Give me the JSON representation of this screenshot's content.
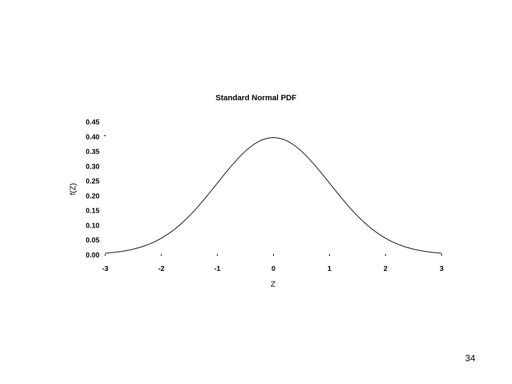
{
  "chart_data": {
    "type": "line",
    "title": "Standard Normal PDF",
    "xlabel": "Z",
    "ylabel": "f(Z)",
    "xlim": [
      -3,
      3
    ],
    "ylim": [
      0,
      0.45
    ],
    "x_ticks": [
      "-3",
      "-2",
      "-1",
      "0",
      "1",
      "2",
      "3"
    ],
    "y_ticks": [
      "0.00",
      "0.05",
      "0.10",
      "0.15",
      "0.20",
      "0.25",
      "0.30",
      "0.35",
      "0.40",
      "0.45"
    ],
    "grid": false,
    "series": [
      {
        "x": [
          -3.0,
          -2.75,
          -2.5,
          -2.25,
          -2.0,
          -1.75,
          -1.5,
          -1.25,
          -1.0,
          -0.75,
          -0.5,
          -0.25,
          0.0,
          0.25,
          0.5,
          0.75,
          1.0,
          1.25,
          1.5,
          1.75,
          2.0,
          2.25,
          2.5,
          2.75,
          3.0
        ],
        "y": [
          0.0044,
          0.0091,
          0.0175,
          0.0317,
          0.054,
          0.0863,
          0.1295,
          0.1826,
          0.242,
          0.3011,
          0.3521,
          0.3867,
          0.3989,
          0.3867,
          0.3521,
          0.3011,
          0.242,
          0.1826,
          0.1295,
          0.0863,
          0.054,
          0.0317,
          0.0175,
          0.0091,
          0.0044
        ]
      }
    ],
    "colors": {
      "line": "#000000",
      "text": "#000000",
      "background": "#ffffff"
    }
  },
  "page_number": "34"
}
